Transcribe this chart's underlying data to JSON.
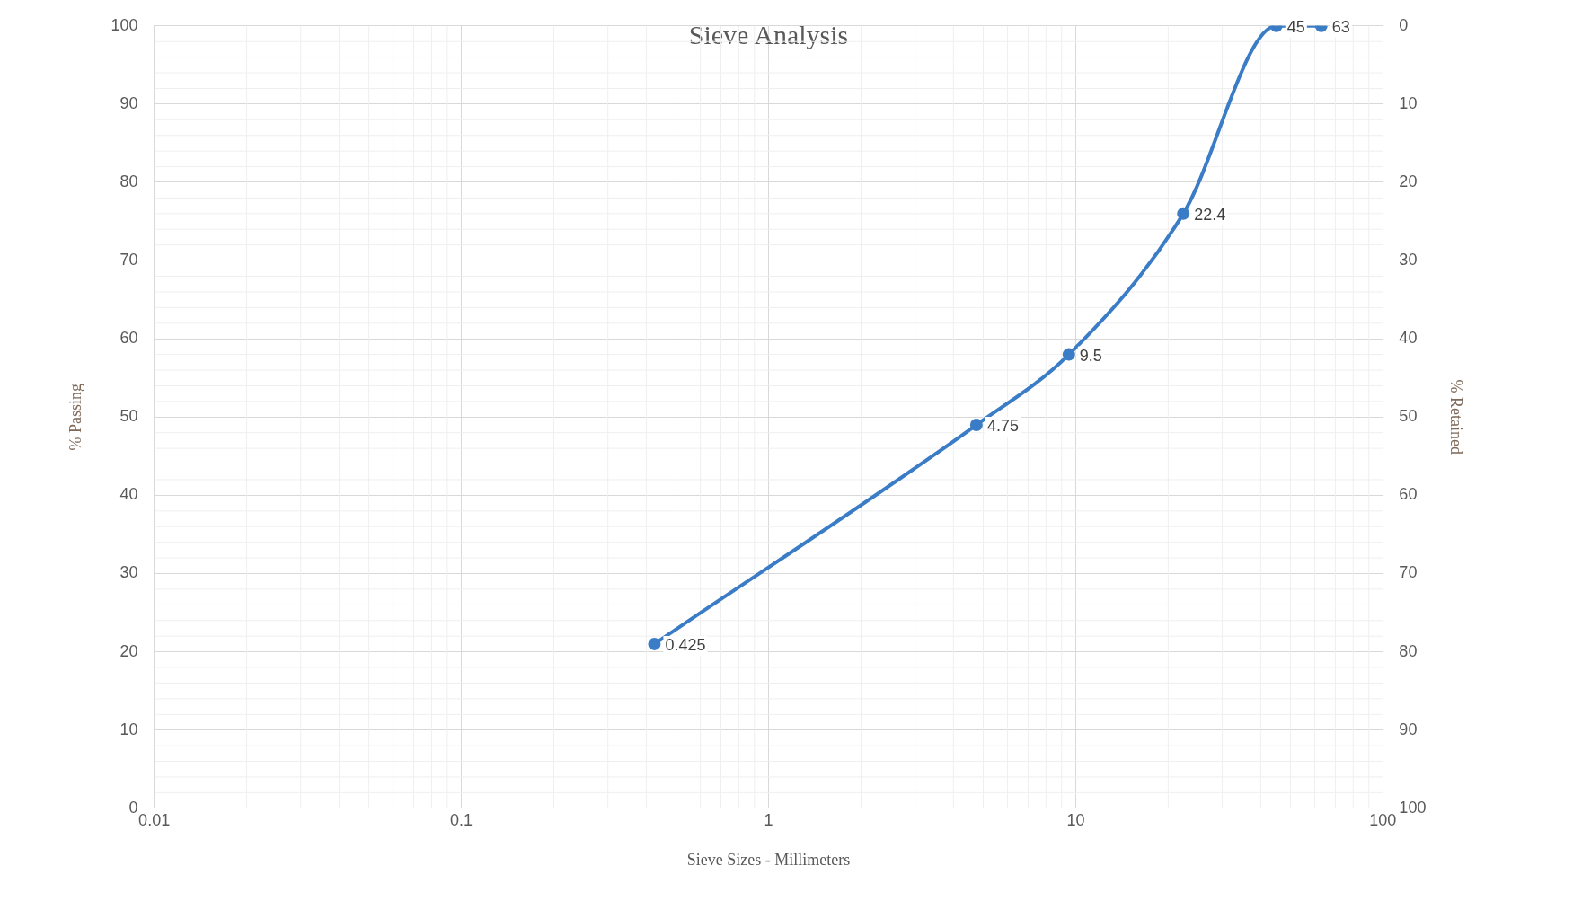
{
  "chart_data": {
    "type": "line",
    "title": "Sieve Analysis",
    "xlabel": "Sieve Sizes - Millimeters",
    "ylabel": "% Passing",
    "y2label": "% Retained",
    "x": [
      0.425,
      4.75,
      9.5,
      22.4,
      45,
      63
    ],
    "series": [
      {
        "color": "#3a7cc6",
        "values": [
          21,
          49,
          58,
          76,
          100,
          100
        ]
      }
    ],
    "annotations": [
      {
        "text": "0.425",
        "x": 0.425,
        "y": 21
      },
      {
        "text": "4.75",
        "x": 4.75,
        "y": 49
      },
      {
        "text": "9.5",
        "x": 9.5,
        "y": 58
      },
      {
        "text": "22.4",
        "x": 22.4,
        "y": 76
      },
      {
        "text": "45",
        "x": 45,
        "y": 100
      },
      {
        "text": "63",
        "x": 63,
        "y": 100
      }
    ],
    "log": "x",
    "xlim": [
      0.01,
      100
    ],
    "xticks": [
      0.01,
      0.1,
      1,
      10,
      100
    ],
    "ylim": [
      0,
      100
    ],
    "yticks": [
      0,
      10,
      20,
      30,
      40,
      50,
      60,
      70,
      80,
      90,
      100
    ],
    "y2lim": [
      100,
      0
    ],
    "y2ticks": [
      0,
      10,
      20,
      30,
      40,
      50,
      60,
      70,
      80,
      90,
      100
    ],
    "grid": true,
    "legend": false,
    "marker": "circle",
    "line_style": "solid"
  }
}
